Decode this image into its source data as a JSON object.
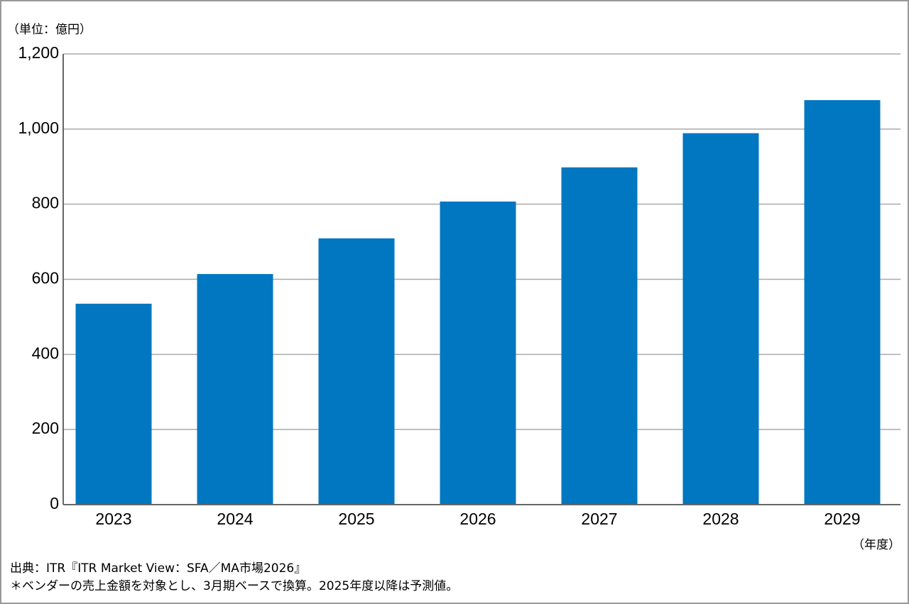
{
  "chart_data": {
    "type": "bar",
    "unit_label": "（単位：億円）",
    "x_label": "（年度）",
    "categories": [
      "2023",
      "2024",
      "2025",
      "2026",
      "2027",
      "2028",
      "2029"
    ],
    "values": [
      535,
      614,
      709,
      807,
      898,
      989,
      1077
    ],
    "color": "#0077c0",
    "ylim": [
      0,
      1200
    ],
    "yticks": [
      0,
      200,
      400,
      600,
      800,
      {
        "value": 1000,
        "label": "1,000"
      },
      {
        "value": 1200,
        "label": "1,200"
      }
    ],
    "grid": true,
    "notes": [
      "出典：ITR『ITR Market View：SFA／MA市場2026』",
      "＊ベンダーの売上金額を対象とし、3月期ベースで換算。2025年度以降は予測値。"
    ]
  }
}
